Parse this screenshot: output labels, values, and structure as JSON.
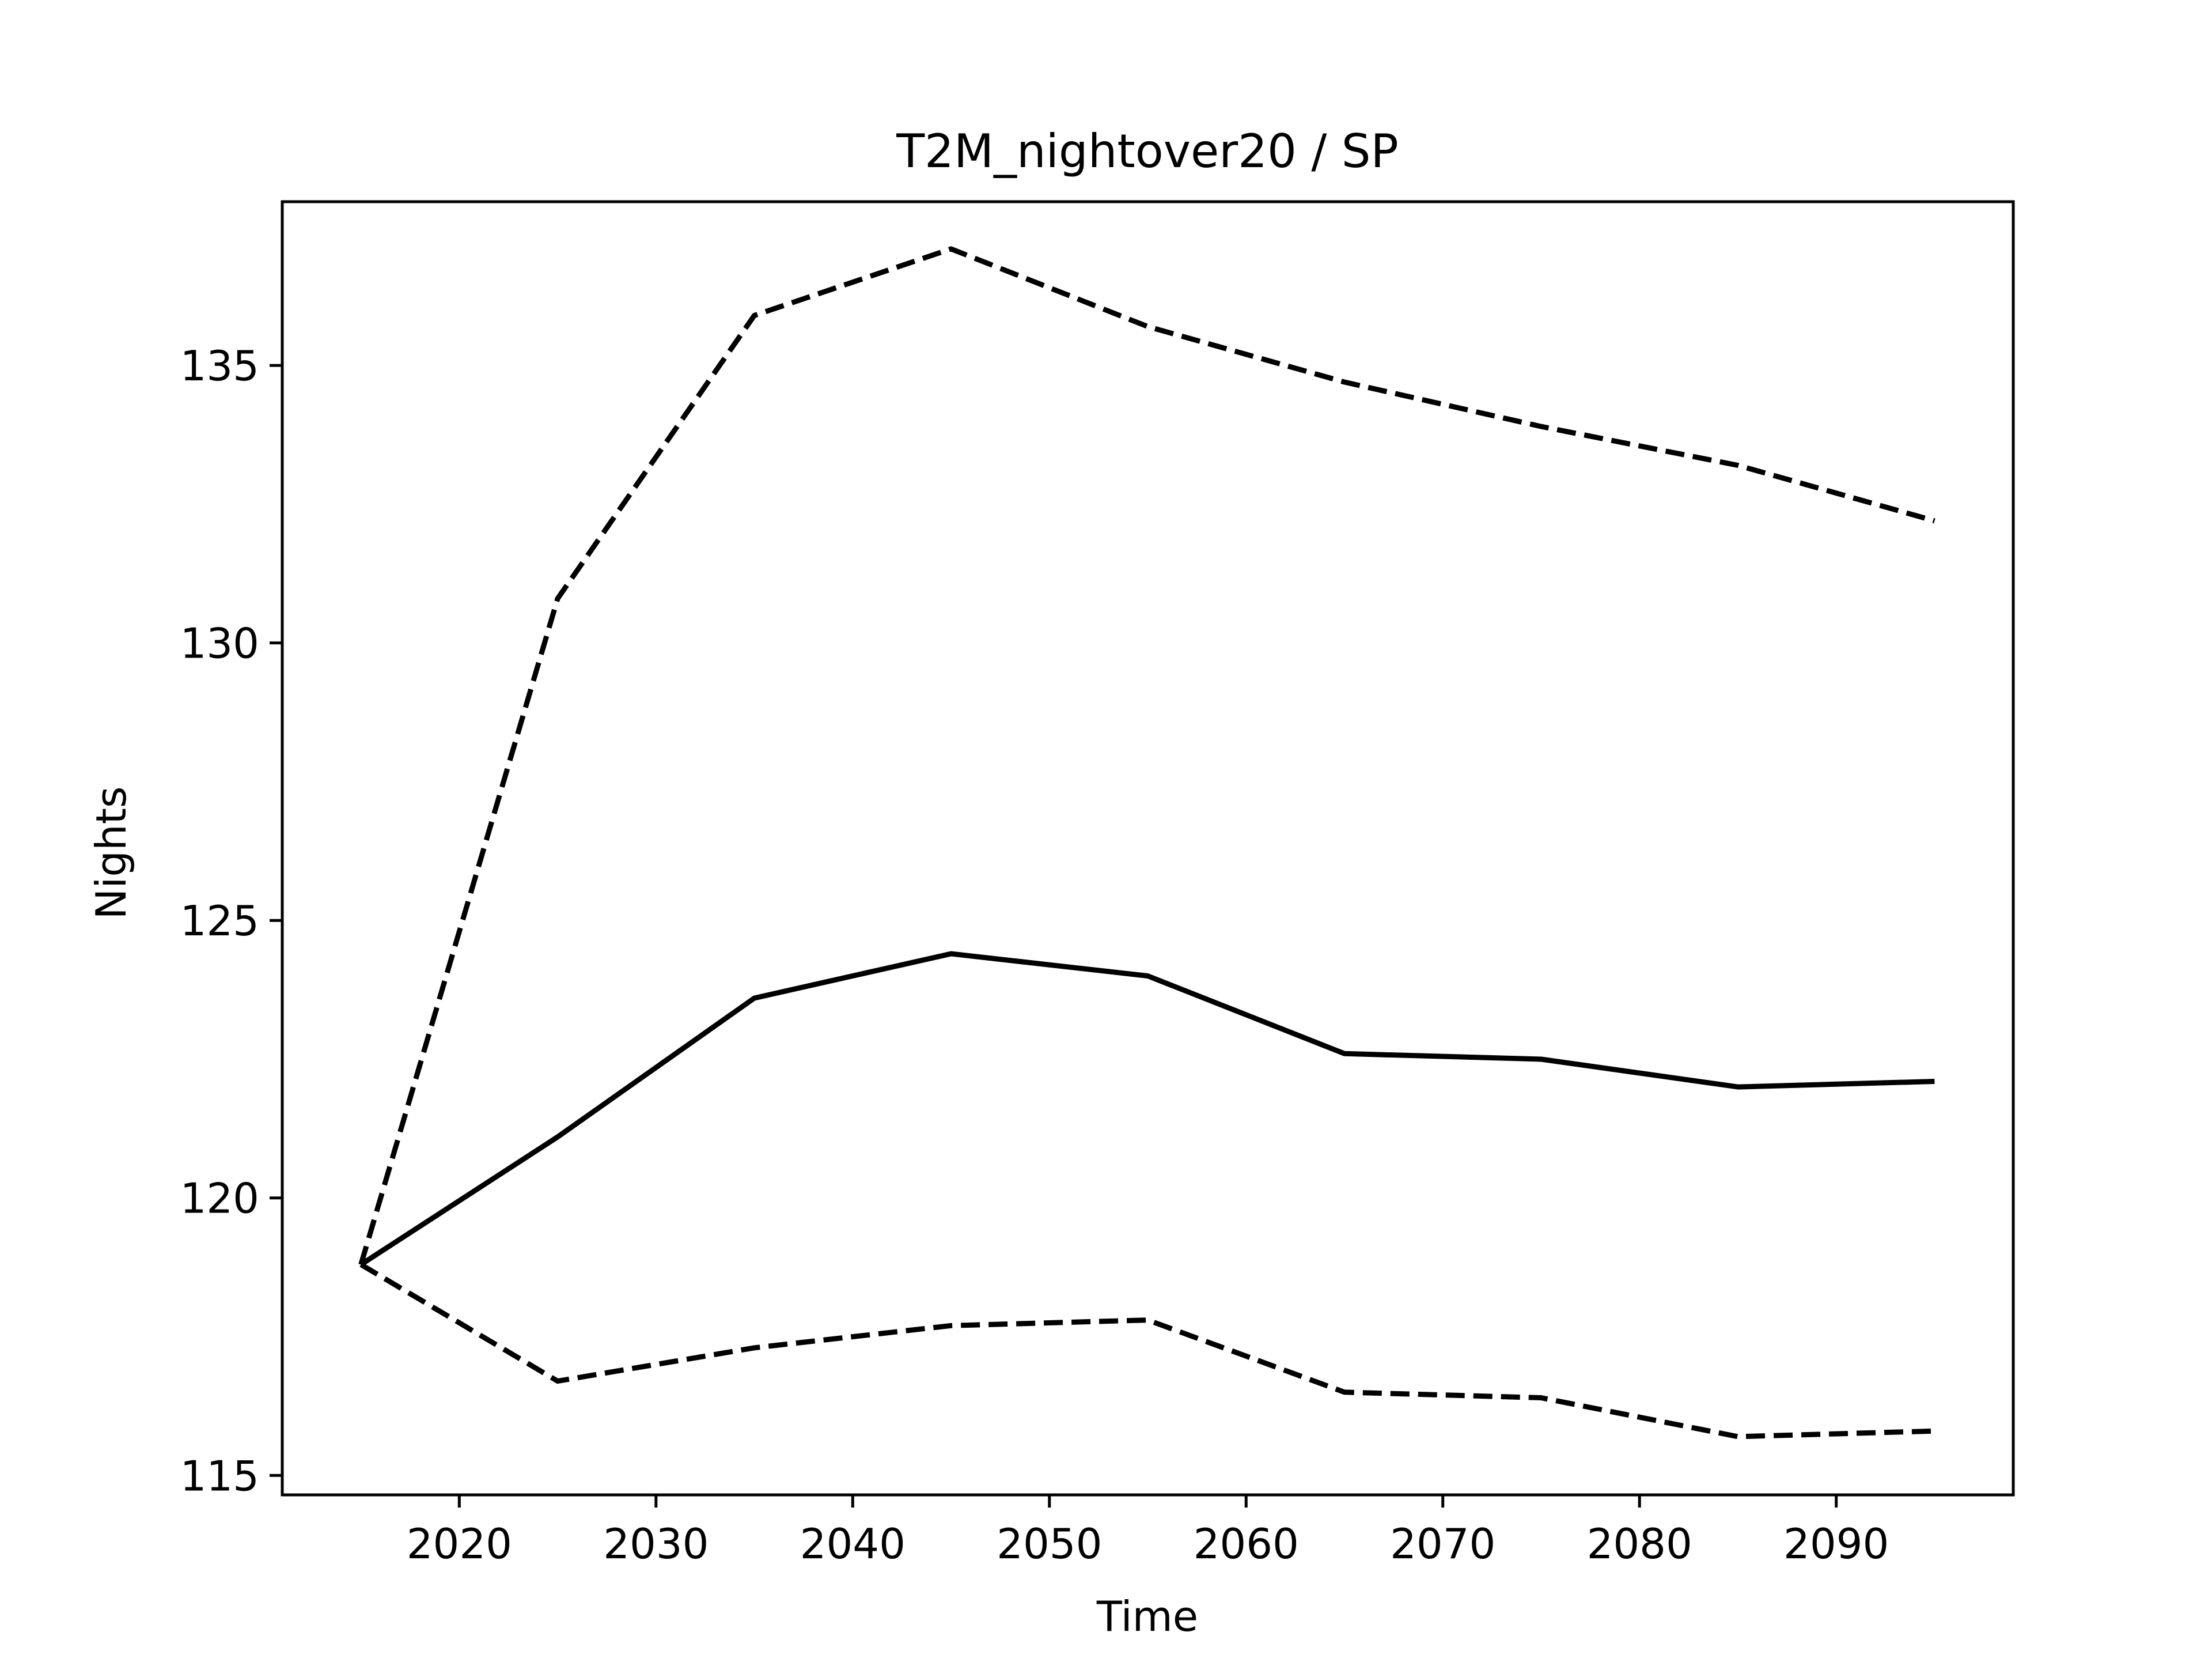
{
  "chart_data": {
    "type": "line",
    "title": "T2M_nightover20 / SP",
    "xlabel": "Time",
    "ylabel": "Nights",
    "xlim": [
      2011,
      2099
    ],
    "ylim": [
      114.65,
      137.95
    ],
    "xticks": [
      2020,
      2030,
      2040,
      2050,
      2060,
      2070,
      2080,
      2090
    ],
    "yticks": [
      115,
      120,
      125,
      130,
      135
    ],
    "grid": false,
    "legend": "none",
    "colors": {
      "line": "#000000",
      "axes": "#000000",
      "background": "#ffffff"
    },
    "x": [
      2015,
      2025,
      2035,
      2045,
      2055,
      2065,
      2075,
      2085,
      2095
    ],
    "series": [
      {
        "style": "solid",
        "values": [
          118.8,
          121.1,
          123.6,
          124.4,
          124.0,
          122.6,
          122.5,
          122.0,
          122.1
        ]
      },
      {
        "style": "dashed",
        "values": [
          118.8,
          130.8,
          135.9,
          137.1,
          135.7,
          134.7,
          133.9,
          133.2,
          132.2
        ]
      },
      {
        "style": "dashed",
        "values": [
          118.8,
          116.7,
          117.3,
          117.7,
          117.8,
          116.5,
          116.4,
          115.7,
          115.8
        ]
      }
    ]
  }
}
